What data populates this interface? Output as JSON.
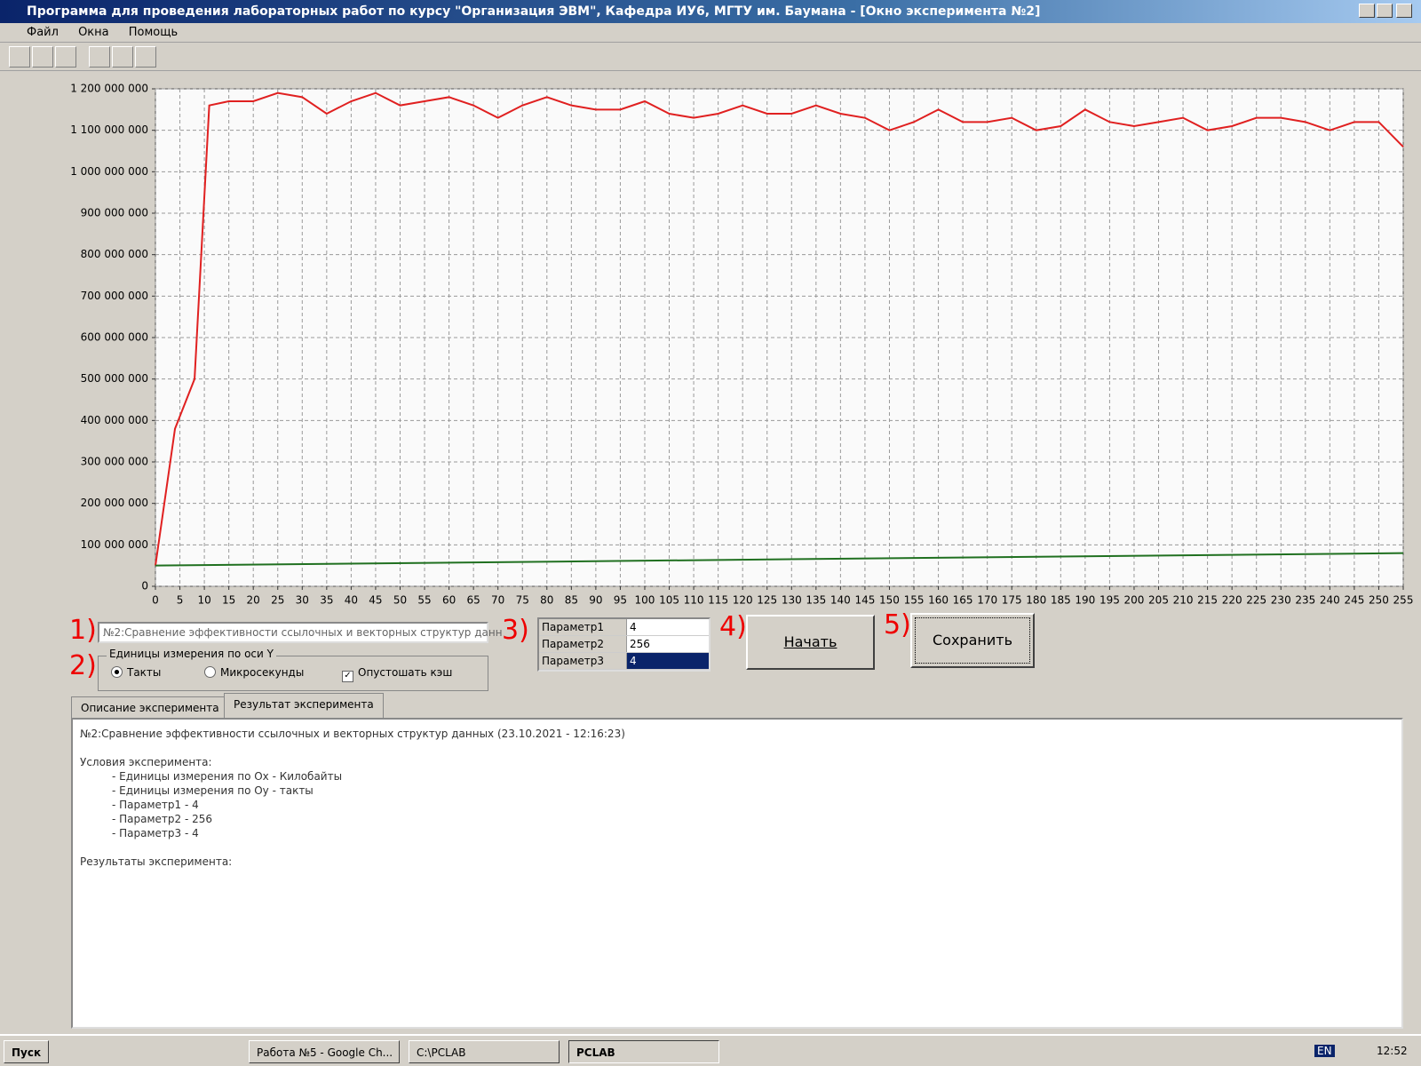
{
  "window": {
    "title": "Программа для проведения лабораторных работ по курсу \"Организация ЭВМ\", Кафедра ИУ6, МГТУ им. Баумана - [Окно эксперимента №2]",
    "menu": [
      "Файл",
      "Окна",
      "Помощь"
    ]
  },
  "chart_data": {
    "type": "line",
    "x_series": [
      0,
      4,
      8,
      11,
      15,
      20,
      25,
      30,
      35,
      40,
      45,
      50,
      55,
      60,
      65,
      70,
      75,
      80,
      85,
      90,
      95,
      100,
      105,
      110,
      115,
      120,
      125,
      130,
      135,
      140,
      145,
      150,
      155,
      160,
      165,
      170,
      175,
      180,
      185,
      190,
      195,
      200,
      205,
      210,
      215,
      220,
      225,
      230,
      235,
      240,
      245,
      250,
      255
    ],
    "series": [
      {
        "color": "#e02020",
        "x": [
          0,
          4,
          8,
          11,
          15,
          20,
          25,
          30,
          35,
          40,
          45,
          50,
          55,
          60,
          65,
          70,
          75,
          80,
          85,
          90,
          95,
          100,
          105,
          110,
          115,
          120,
          125,
          130,
          135,
          140,
          145,
          150,
          155,
          160,
          165,
          170,
          175,
          180,
          185,
          190,
          195,
          200,
          205,
          210,
          215,
          220,
          225,
          230,
          235,
          240,
          245,
          250,
          255
        ],
        "values": [
          50000000,
          380000000,
          500000000,
          1160000000,
          1170000000,
          1170000000,
          1190000000,
          1180000000,
          1140000000,
          1170000000,
          1190000000,
          1160000000,
          1170000000,
          1180000000,
          1160000000,
          1130000000,
          1160000000,
          1180000000,
          1160000000,
          1150000000,
          1150000000,
          1170000000,
          1140000000,
          1130000000,
          1140000000,
          1160000000,
          1140000000,
          1140000000,
          1160000000,
          1140000000,
          1130000000,
          1100000000,
          1120000000,
          1150000000,
          1120000000,
          1120000000,
          1130000000,
          1100000000,
          1110000000,
          1150000000,
          1120000000,
          1110000000,
          1120000000,
          1130000000,
          1100000000,
          1110000000,
          1130000000,
          1130000000,
          1120000000,
          1100000000,
          1120000000,
          1120000000,
          1060000000
        ]
      },
      {
        "color": "#207020",
        "x": [
          0,
          255
        ],
        "values": [
          50000000,
          80000000
        ]
      }
    ],
    "xlim": [
      0,
      255
    ],
    "xticks": [
      0,
      5,
      10,
      15,
      20,
      25,
      30,
      35,
      40,
      45,
      50,
      55,
      60,
      65,
      70,
      75,
      80,
      85,
      90,
      95,
      100,
      105,
      110,
      115,
      120,
      125,
      130,
      135,
      140,
      145,
      150,
      155,
      160,
      165,
      170,
      175,
      180,
      185,
      190,
      195,
      200,
      205,
      210,
      215,
      220,
      225,
      230,
      235,
      240,
      245,
      250,
      255
    ],
    "ylim": [
      0,
      1200000000
    ],
    "yticks": [
      0,
      {
        "value": 100000000,
        "label": "100 000 000"
      },
      {
        "value": 200000000,
        "label": "200 000 000"
      },
      {
        "value": 300000000,
        "label": "300 000 000"
      },
      {
        "value": 400000000,
        "label": "400 000 000"
      },
      {
        "value": 500000000,
        "label": "500 000 000"
      },
      {
        "value": 600000000,
        "label": "600 000 000"
      },
      {
        "value": 700000000,
        "label": "700 000 000"
      },
      {
        "value": 800000000,
        "label": "800 000 000"
      },
      {
        "value": 900000000,
        "label": "900 000 000"
      },
      {
        "value": 1000000000,
        "label": "1 000 000 000"
      },
      {
        "value": 1100000000,
        "label": "1 100 000 000"
      },
      {
        "value": 1200000000,
        "label": "1 200 000 000"
      }
    ],
    "grid": true
  },
  "controls": {
    "annotations": [
      "1)",
      "2)",
      "3)",
      "4)",
      "5)"
    ],
    "experiment": "№2:Сравнение эффективности ссылочных и векторных структур данн",
    "y_units_group": "Единицы измерения по оси Y",
    "radio_ticks": "Такты",
    "radio_us": "Микросекунды",
    "flush_cache": "Опустошать кэш",
    "params": [
      [
        "Параметр1",
        "4"
      ],
      [
        "Параметр2",
        "256"
      ],
      [
        "Параметр3",
        "4"
      ]
    ],
    "start": "Начать",
    "save": "Сохранить"
  },
  "tabs": [
    "Описание эксперимента",
    "Результат эксперимента"
  ],
  "result_text": {
    "header": "№2:Сравнение эффективности ссылочных и векторных структур данных (23.10.2021 - 12:16:23)",
    "conditions": "Условия эксперимента:",
    "lines": [
      "- Единицы измерения по Ox - Килобайты",
      "- Единицы измерения по Oy - такты",
      "- Параметр1  -  4",
      "- Параметр2  -  256",
      "- Параметр3  -  4"
    ],
    "results": "Результаты эксперимента:"
  },
  "taskbar": {
    "start": "Пуск",
    "tasks": [
      "Работа №5 - Google Ch...",
      "C:\\PCLAB",
      "PCLAB"
    ],
    "lang": "EN",
    "clock": "12:52"
  }
}
